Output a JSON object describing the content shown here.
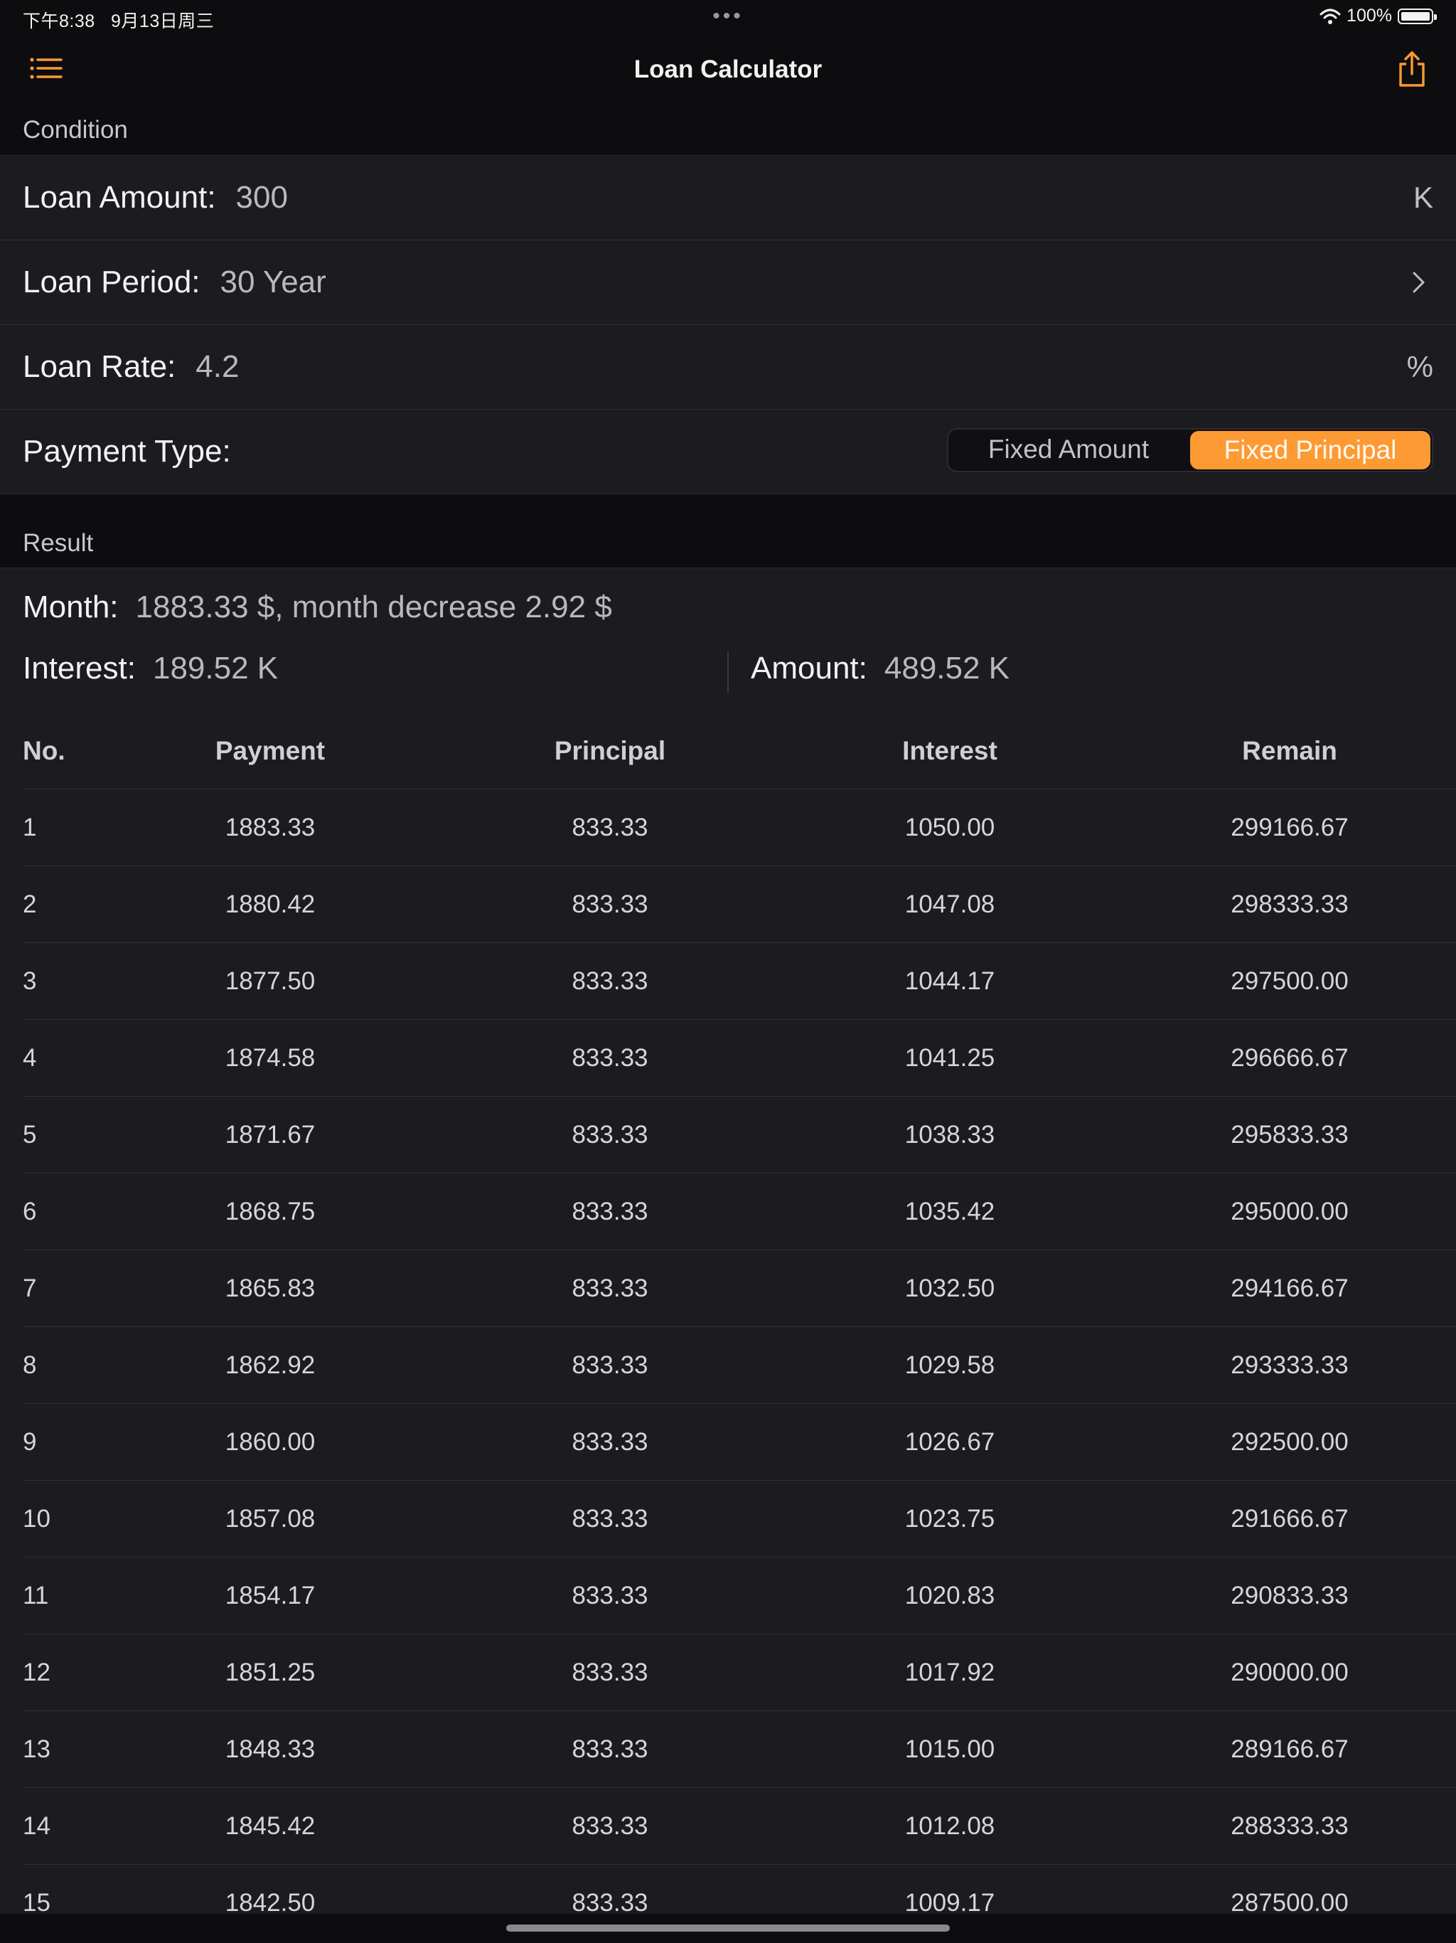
{
  "status_bar": {
    "time": "下午8:38",
    "date": "9月13日周三",
    "dots": "•••",
    "battery_pct": "100%"
  },
  "nav": {
    "title": "Loan Calculator",
    "left_icon": "list-icon",
    "right_icon": "share-icon"
  },
  "accent_color": "#fd9a34",
  "condition": {
    "header": "Condition",
    "amount_label": "Loan Amount:",
    "amount_value": "300",
    "amount_suffix": "K",
    "period_label": "Loan Period:",
    "period_value": "30 Year",
    "rate_label": "Loan Rate:",
    "rate_value": "4.2",
    "rate_suffix": "%",
    "payment_type_label": "Payment Type:",
    "payment_types": [
      "Fixed Amount",
      "Fixed Principal"
    ],
    "selected_payment_type": "Fixed Principal"
  },
  "result": {
    "header": "Result",
    "month_label": "Month:",
    "month_value": "1883.33 $, month decrease 2.92 $",
    "interest_label": "Interest:",
    "interest_value": "189.52 K",
    "amount_label": "Amount:",
    "amount_value": "489.52 K"
  },
  "table": {
    "headers": [
      "No.",
      "Payment",
      "Principal",
      "Interest",
      "Remain"
    ],
    "rows": [
      [
        "1",
        "1883.33",
        "833.33",
        "1050.00",
        "299166.67"
      ],
      [
        "2",
        "1880.42",
        "833.33",
        "1047.08",
        "298333.33"
      ],
      [
        "3",
        "1877.50",
        "833.33",
        "1044.17",
        "297500.00"
      ],
      [
        "4",
        "1874.58",
        "833.33",
        "1041.25",
        "296666.67"
      ],
      [
        "5",
        "1871.67",
        "833.33",
        "1038.33",
        "295833.33"
      ],
      [
        "6",
        "1868.75",
        "833.33",
        "1035.42",
        "295000.00"
      ],
      [
        "7",
        "1865.83",
        "833.33",
        "1032.50",
        "294166.67"
      ],
      [
        "8",
        "1862.92",
        "833.33",
        "1029.58",
        "293333.33"
      ],
      [
        "9",
        "1860.00",
        "833.33",
        "1026.67",
        "292500.00"
      ],
      [
        "10",
        "1857.08",
        "833.33",
        "1023.75",
        "291666.67"
      ],
      [
        "11",
        "1854.17",
        "833.33",
        "1020.83",
        "290833.33"
      ],
      [
        "12",
        "1851.25",
        "833.33",
        "1017.92",
        "290000.00"
      ],
      [
        "13",
        "1848.33",
        "833.33",
        "1015.00",
        "289166.67"
      ],
      [
        "14",
        "1845.42",
        "833.33",
        "1012.08",
        "288333.33"
      ],
      [
        "15",
        "1842.50",
        "833.33",
        "1009.17",
        "287500.00"
      ]
    ]
  }
}
